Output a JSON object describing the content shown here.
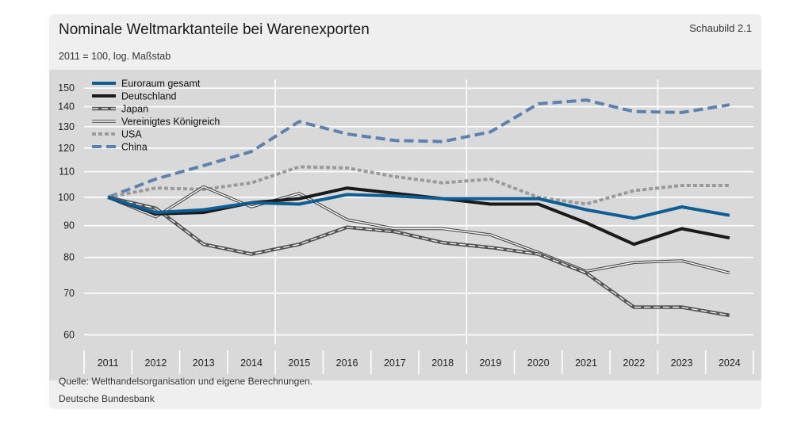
{
  "title": "Nominale Weltmarktanteile bei Warenexporten",
  "figure_number": "Schaubild 2.1",
  "subtitle": "2011 = 100, log. Maßstab",
  "source": "Quelle: Welthandelsorganisation und eigene Berechnungen.",
  "publisher": "Deutsche Bundesbank",
  "colors": {
    "plot_bg": "#d9d9d9",
    "grid": "#ffffff",
    "euro": "#0e5e96",
    "china": "#5b82b0",
    "usa": "#9a9a9a",
    "dark": "#1a1a1a"
  },
  "chart_data": {
    "type": "line",
    "title": "Nominale Weltmarktanteile bei Warenexporten",
    "subtitle": "2011 = 100, log. Maßstab",
    "xlabel": "",
    "ylabel": "",
    "yscale": "log",
    "ylim": [
      58,
      155
    ],
    "yticks": [
      60,
      70,
      80,
      90,
      100,
      110,
      120,
      130,
      140,
      150
    ],
    "grid": true,
    "legend_position": "top-left",
    "categories": [
      "2011",
      "2012",
      "2013",
      "2014",
      "2015",
      "2016",
      "2017",
      "2018",
      "2019",
      "2020",
      "2021",
      "2022",
      "2023",
      "2024"
    ],
    "series": [
      {
        "name": "Euroraum gesamt",
        "style": "thick-solid",
        "color": "#0e5e96",
        "values": [
          100,
          94.5,
          95.5,
          98,
          97.5,
          101,
          100.5,
          99.5,
          99.5,
          99.5,
          95.5,
          92.5,
          96.5,
          93.5
        ]
      },
      {
        "name": "Deutschland",
        "style": "thick-solid",
        "color": "#1a1a1a",
        "values": [
          100,
          94,
          94.5,
          98,
          99.5,
          103.5,
          101.5,
          99.5,
          97.5,
          97.5,
          91,
          84,
          89,
          86
        ]
      },
      {
        "name": "Japan",
        "style": "double-dashed",
        "color": "#555555",
        "values": [
          100,
          96,
          84,
          81,
          84,
          89.5,
          88,
          84.5,
          83,
          81,
          75.5,
          66.5,
          66.5,
          64.5
        ]
      },
      {
        "name": "Vereinigtes Königreich",
        "style": "double-thin",
        "color": "#444444",
        "values": [
          100,
          93,
          104,
          96.5,
          101.5,
          92,
          89,
          89,
          87,
          81.5,
          76,
          78.5,
          79,
          75.5
        ]
      },
      {
        "name": "USA",
        "style": "dotted",
        "color": "#9a9a9a",
        "values": [
          100,
          103.5,
          103,
          105.5,
          112,
          111.5,
          108,
          105.5,
          107,
          100,
          97.5,
          102.5,
          104.5,
          104.5
        ]
      },
      {
        "name": "China",
        "style": "dashed",
        "color": "#5b82b0",
        "values": [
          100,
          107,
          112.5,
          118.5,
          132.5,
          126.5,
          123.5,
          123,
          127.5,
          141.5,
          143.5,
          137.5,
          137,
          141
        ]
      }
    ]
  }
}
